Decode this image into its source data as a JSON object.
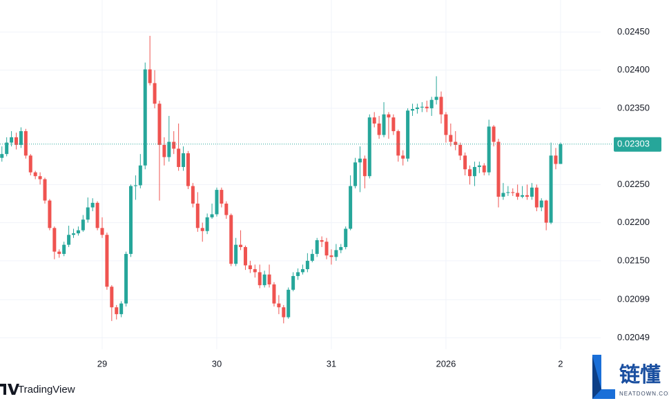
{
  "chart_data": {
    "type": "candlestick",
    "up_color": "#26a69a",
    "down_color": "#ef5350",
    "grid": true,
    "xlim": [
      2.6,
      128.4
    ],
    "xticks": [
      {
        "value": 24,
        "label": "29"
      },
      {
        "value": 48,
        "label": "30"
      },
      {
        "value": 72,
        "label": "31"
      },
      {
        "value": 96,
        "label": "2026"
      },
      {
        "value": 120,
        "label": "2"
      }
    ],
    "ylim": [
      0.02034,
      0.02492
    ],
    "yticks": [
      {
        "value": 0.0245,
        "label": "0.02450"
      },
      {
        "value": 0.024,
        "label": "0.02400"
      },
      {
        "value": 0.0235,
        "label": "0.02350"
      },
      {
        "value": 0.0225,
        "label": "0.02250"
      },
      {
        "value": 0.022,
        "label": "0.02200"
      },
      {
        "value": 0.0215,
        "label": "0.02150"
      },
      0.02099,
      0.02049
    ],
    "last_price": 0.02303,
    "watermark": "TradingView",
    "badge": {
      "title": "链懂",
      "subtitle": "NEATDOWN.COM"
    },
    "x": [
      3,
      4,
      5,
      6,
      7,
      8,
      9,
      10,
      11,
      12,
      13,
      14,
      15,
      16,
      17,
      18,
      19,
      20,
      21,
      22,
      23,
      24,
      25,
      26,
      27,
      28,
      29,
      30,
      31,
      32,
      33,
      34,
      35,
      36,
      37,
      38,
      39,
      40,
      41,
      42,
      43,
      44,
      45,
      46,
      47,
      48,
      49,
      50,
      51,
      52,
      53,
      54,
      55,
      56,
      57,
      58,
      59,
      60,
      61,
      62,
      63,
      64,
      65,
      66,
      67,
      68,
      69,
      70,
      71,
      72,
      73,
      74,
      75,
      76,
      77,
      78,
      79,
      80,
      81,
      82,
      83,
      84,
      85,
      86,
      87,
      88,
      89,
      90,
      91,
      92,
      93,
      94,
      95,
      96,
      97,
      98,
      99,
      100,
      101,
      102,
      103,
      104,
      105,
      106,
      107,
      108,
      109,
      110,
      111,
      112,
      113,
      114,
      115,
      116,
      117,
      118,
      119,
      120
    ],
    "open": [
      0.02285,
      0.0229,
      0.02305,
      0.02312,
      0.02302,
      0.0232,
      0.02288,
      0.02266,
      0.02261,
      0.02257,
      0.02229,
      0.02193,
      0.02162,
      0.02159,
      0.02171,
      0.02184,
      0.02186,
      0.0219,
      0.02204,
      0.0222,
      0.02226,
      0.02193,
      0.02184,
      0.02116,
      0.02089,
      0.0208,
      0.02094,
      0.02159,
      0.02248,
      0.02249,
      0.02275,
      0.02401,
      0.02383,
      0.02356,
      0.02302,
      0.02286,
      0.02306,
      0.02297,
      0.02273,
      0.02291,
      0.02248,
      0.02225,
      0.02193,
      0.02189,
      0.02207,
      0.02211,
      0.02243,
      0.02225,
      0.0221,
      0.02146,
      0.02171,
      0.02168,
      0.02144,
      0.02139,
      0.02135,
      0.02118,
      0.02132,
      0.02119,
      0.02094,
      0.02089,
      0.02076,
      0.02112,
      0.0213,
      0.02135,
      0.02139,
      0.0215,
      0.02159,
      0.02177,
      0.02175,
      0.02157,
      0.02155,
      0.02164,
      0.02168,
      0.02192,
      0.02248,
      0.02279,
      0.02284,
      0.02261,
      0.02338,
      0.0233,
      0.02315,
      0.02342,
      0.02338,
      0.0232,
      0.02288,
      0.02284,
      0.02347,
      0.02349,
      0.02351,
      0.02352,
      0.0235,
      0.02361,
      0.02365,
      0.02342,
      0.02315,
      0.02306,
      0.02302,
      0.02288,
      0.0227,
      0.02261,
      0.02273,
      0.02275,
      0.02266,
      0.02326,
      0.02306,
      0.02234,
      0.02239,
      0.0224,
      0.02239,
      0.02234,
      0.02236,
      0.02234,
      0.02246,
      0.0222,
      0.02229,
      0.022,
      0.02288,
      0.02277
    ],
    "high": [
      0.023,
      0.02312,
      0.0232,
      0.02318,
      0.02325,
      0.02323,
      0.0229,
      0.02268,
      0.02266,
      0.02259,
      0.02231,
      0.02195,
      0.02165,
      0.02175,
      0.02196,
      0.02192,
      0.02195,
      0.0221,
      0.02233,
      0.02232,
      0.02228,
      0.02207,
      0.02187,
      0.02118,
      0.02092,
      0.02097,
      0.02162,
      0.0225,
      0.02262,
      0.0229,
      0.0241,
      0.02445,
      0.024,
      0.0236,
      0.02312,
      0.0234,
      0.0232,
      0.0233,
      0.023,
      0.02294,
      0.02252,
      0.0224,
      0.022,
      0.02212,
      0.02225,
      0.02246,
      0.02246,
      0.02228,
      0.02212,
      0.0218,
      0.0219,
      0.0217,
      0.0215,
      0.02145,
      0.02145,
      0.02137,
      0.02145,
      0.02122,
      0.02105,
      0.02092,
      0.02115,
      0.02135,
      0.0214,
      0.02145,
      0.0216,
      0.02165,
      0.0218,
      0.02182,
      0.0218,
      0.02165,
      0.02172,
      0.02172,
      0.02195,
      0.02262,
      0.02285,
      0.023,
      0.02288,
      0.02342,
      0.02345,
      0.0234,
      0.02358,
      0.02345,
      0.02342,
      0.02322,
      0.02295,
      0.0235,
      0.02356,
      0.02356,
      0.02358,
      0.0236,
      0.02365,
      0.02392,
      0.02372,
      0.02345,
      0.0233,
      0.0232,
      0.02305,
      0.02292,
      0.02275,
      0.0228,
      0.0228,
      0.02278,
      0.02335,
      0.02328,
      0.0231,
      0.02252,
      0.02248,
      0.02245,
      0.0225,
      0.02248,
      0.0225,
      0.02252,
      0.0225,
      0.02232,
      0.0223,
      0.02305,
      0.02298,
      0.02305
    ],
    "low": [
      0.0228,
      0.02287,
      0.023,
      0.02296,
      0.02298,
      0.02284,
      0.02262,
      0.02257,
      0.0225,
      0.02225,
      0.0219,
      0.02152,
      0.02154,
      0.02156,
      0.02168,
      0.0218,
      0.02183,
      0.02188,
      0.022,
      0.02215,
      0.0219,
      0.0218,
      0.02112,
      0.02071,
      0.02073,
      0.02076,
      0.0209,
      0.02155,
      0.0223,
      0.02245,
      0.0227,
      0.0238,
      0.0235,
      0.02229,
      0.02275,
      0.0228,
      0.0229,
      0.02268,
      0.02268,
      0.02244,
      0.0222,
      0.02188,
      0.02175,
      0.02185,
      0.02205,
      0.02208,
      0.0222,
      0.02205,
      0.02143,
      0.02143,
      0.02164,
      0.02138,
      0.02134,
      0.02128,
      0.02114,
      0.02115,
      0.02115,
      0.0209,
      0.0208,
      0.02068,
      0.02074,
      0.0211,
      0.02125,
      0.02132,
      0.02135,
      0.02148,
      0.02155,
      0.02168,
      0.02152,
      0.02145,
      0.0215,
      0.0216,
      0.02165,
      0.0219,
      0.02245,
      0.0224,
      0.02245,
      0.02258,
      0.02325,
      0.0231,
      0.02312,
      0.0231,
      0.02315,
      0.0228,
      0.02275,
      0.0228,
      0.0234,
      0.02343,
      0.02345,
      0.02345,
      0.0234,
      0.02355,
      0.0233,
      0.02305,
      0.023,
      0.02295,
      0.02282,
      0.02262,
      0.0225,
      0.02248,
      0.02265,
      0.02262,
      0.02262,
      0.023,
      0.0222,
      0.0223,
      0.02235,
      0.02235,
      0.0223,
      0.02232,
      0.0223,
      0.0223,
      0.02215,
      0.02215,
      0.0219,
      0.02198,
      0.0227,
      0.02277
    ],
    "close": [
      0.0229,
      0.02305,
      0.02312,
      0.02302,
      0.0232,
      0.02288,
      0.02266,
      0.02261,
      0.02257,
      0.02229,
      0.02193,
      0.02162,
      0.02159,
      0.02171,
      0.02184,
      0.02186,
      0.0219,
      0.02204,
      0.0222,
      0.02226,
      0.02193,
      0.02184,
      0.02116,
      0.02089,
      0.0208,
      0.02094,
      0.02159,
      0.02248,
      0.02249,
      0.02275,
      0.02401,
      0.02383,
      0.02356,
      0.02302,
      0.02286,
      0.02306,
      0.02297,
      0.02273,
      0.02291,
      0.02248,
      0.02225,
      0.02193,
      0.02189,
      0.02207,
      0.02211,
      0.02243,
      0.02225,
      0.0221,
      0.02146,
      0.02171,
      0.02168,
      0.02144,
      0.02139,
      0.02135,
      0.02118,
      0.02132,
      0.02119,
      0.02094,
      0.02089,
      0.02076,
      0.02112,
      0.0213,
      0.02135,
      0.02139,
      0.0215,
      0.02159,
      0.02177,
      0.02175,
      0.02157,
      0.02155,
      0.02164,
      0.02168,
      0.02192,
      0.02248,
      0.02279,
      0.02284,
      0.02261,
      0.02338,
      0.0233,
      0.02315,
      0.02342,
      0.02338,
      0.0232,
      0.02288,
      0.02284,
      0.02347,
      0.02349,
      0.02351,
      0.02352,
      0.0235,
      0.02361,
      0.02365,
      0.02342,
      0.02315,
      0.02306,
      0.02302,
      0.02288,
      0.0227,
      0.02261,
      0.02273,
      0.02275,
      0.02266,
      0.02326,
      0.02306,
      0.02234,
      0.02239,
      0.0224,
      0.02239,
      0.02234,
      0.02236,
      0.02234,
      0.02246,
      0.0222,
      0.02229,
      0.022,
      0.02288,
      0.02277,
      0.02303
    ]
  }
}
